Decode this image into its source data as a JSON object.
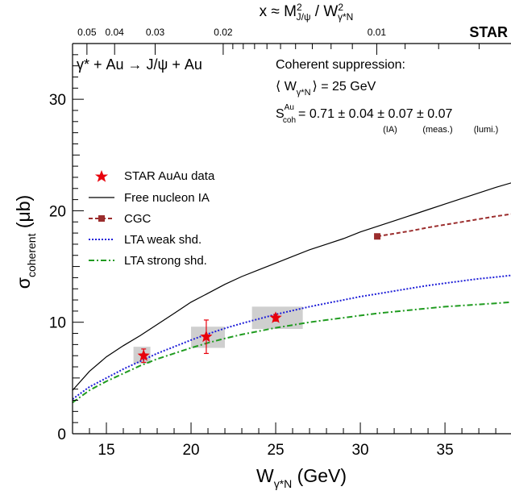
{
  "chart_data": {
    "type": "line",
    "experiment": "STAR",
    "process": "γ* + Au → J/ψ + Au",
    "top_axis_label": "x ≈ M²_J/ψ / W²_γ*N",
    "top_axis_label_parts": {
      "x": "x ≈ M",
      "sup": "2",
      "sub1": "J/ψ",
      "mid": " / W",
      "sub2": "γ*N"
    },
    "top_ticks": [
      {
        "label": "0.05",
        "x": 0.05
      },
      {
        "label": "0.04",
        "x": 0.04
      },
      {
        "label": "0.03",
        "x": 0.03
      },
      {
        "label": "0.02",
        "x": 0.02
      },
      {
        "label": "0.01",
        "x": 0.01
      }
    ],
    "xlabel": "W_γ*N (GeV)",
    "xlabel_parts": {
      "main": "W",
      "sub": "γ*N",
      "unit": " (GeV)"
    },
    "ylabel": "σ_coherent (μb)",
    "ylabel_parts": {
      "main": "σ",
      "sub": "coherent",
      "unit": " (μb)"
    },
    "xlim": [
      13.0,
      38.9
    ],
    "ylim": [
      0,
      35
    ],
    "xticks": [
      15,
      20,
      25,
      30,
      35
    ],
    "yticks": [
      0,
      10,
      20,
      30
    ],
    "annotations": {
      "title": "Coherent suppression:",
      "mean_w": "⟨ W_γ*N ⟩ = 25 GeV",
      "mean_w_parts": {
        "pre": "⟨ W",
        "sub": "γ*N",
        "post": "⟩ = 25 GeV"
      },
      "s_coh": "S_coh^Au = 0.71 ± 0.04 ± 0.07 ± 0.07",
      "s_coh_parts": {
        "main": "S",
        "sup": "Au",
        "sub": "coh",
        "rest": "= 0.71 ± 0.04 ± 0.07 ± 0.07"
      },
      "uncert_labels": [
        "(IA)",
        "(meas.)",
        "(lumi.)"
      ]
    },
    "legend_position": "left",
    "legend": [
      {
        "label": "STAR AuAu data",
        "symbol": "star",
        "color": "#e8000b"
      },
      {
        "label": "Free nucleon IA",
        "symbol": "line",
        "color": "#000000"
      },
      {
        "label": "CGC",
        "symbol": "dashed-square",
        "color": "#9b2d2d"
      },
      {
        "label": "LTA weak shd.",
        "symbol": "dotted",
        "color": "#1f1fd8"
      },
      {
        "label": "LTA strong shd.",
        "symbol": "dashdot",
        "color": "#1f9b1f"
      }
    ],
    "series": [
      {
        "name": "STAR AuAu data",
        "kind": "points",
        "color": "#e8000b",
        "points": [
          {
            "x": 17.2,
            "y": 7.0,
            "yerr_stat": 0.6,
            "sys_x": [
              16.6,
              17.6
            ],
            "sys_y": [
              6.3,
              7.8
            ]
          },
          {
            "x": 20.9,
            "y": 8.7,
            "yerr_stat": 1.5,
            "sys_x": [
              20.0,
              22.0
            ],
            "sys_y": [
              7.7,
              9.6
            ]
          },
          {
            "x": 25.0,
            "y": 10.4,
            "yerr_stat": 0.3,
            "sys_x": [
              23.6,
              26.6
            ],
            "sys_y": [
              9.4,
              11.4
            ]
          }
        ]
      },
      {
        "name": "Free nucleon IA",
        "kind": "curve",
        "color": "#000000",
        "dash": "",
        "x": [
          13.0,
          14.0,
          15.0,
          16.0,
          17.0,
          18.0,
          19.0,
          20.0,
          21.0,
          22.0,
          23.0,
          24.0,
          25.0,
          26.0,
          27.0,
          28.0,
          29.0,
          30.0,
          31.0,
          32.0,
          33.0,
          34.0,
          35.0,
          36.0,
          37.0,
          38.0,
          38.9
        ],
        "y": [
          3.9,
          5.6,
          6.9,
          7.9,
          8.8,
          9.8,
          10.8,
          11.8,
          12.6,
          13.4,
          14.1,
          14.7,
          15.3,
          15.9,
          16.5,
          17.0,
          17.5,
          18.1,
          18.6,
          19.1,
          19.6,
          20.1,
          20.6,
          21.1,
          21.6,
          22.1,
          22.5
        ]
      },
      {
        "name": "CGC",
        "kind": "curve",
        "color": "#9b2d2d",
        "dash": "5,3",
        "marker": "square",
        "x": [
          31.0,
          32.0,
          33.0,
          34.0,
          35.0,
          36.0,
          37.0,
          38.0,
          38.9
        ],
        "y": [
          17.7,
          17.95,
          18.2,
          18.5,
          18.75,
          19.0,
          19.25,
          19.5,
          19.7
        ]
      },
      {
        "name": "LTA weak shd.",
        "kind": "curve",
        "color": "#1f1fd8",
        "dash": "2,2",
        "x": [
          13.0,
          14.0,
          15.0,
          16.0,
          17.0,
          18.0,
          19.0,
          20.0,
          21.0,
          22.0,
          23.0,
          24.0,
          25.0,
          26.0,
          27.0,
          28.0,
          29.0,
          30.0,
          31.0,
          32.0,
          33.0,
          34.0,
          35.0,
          36.0,
          37.0,
          38.0,
          38.9
        ],
        "y": [
          3.1,
          4.2,
          5.0,
          5.8,
          6.5,
          7.2,
          7.8,
          8.4,
          8.95,
          9.45,
          9.9,
          10.3,
          10.7,
          11.05,
          11.4,
          11.7,
          12.0,
          12.3,
          12.55,
          12.8,
          13.05,
          13.3,
          13.5,
          13.7,
          13.9,
          14.05,
          14.2
        ]
      },
      {
        "name": "LTA strong shd.",
        "kind": "curve",
        "color": "#1f9b1f",
        "dash": "7,3,2,3",
        "x": [
          13.0,
          14.0,
          15.0,
          16.0,
          17.0,
          18.0,
          19.0,
          20.0,
          21.0,
          22.0,
          23.0,
          24.0,
          25.0,
          26.0,
          27.0,
          28.0,
          29.0,
          30.0,
          31.0,
          32.0,
          33.0,
          34.0,
          35.0,
          36.0,
          37.0,
          38.0,
          38.9
        ],
        "y": [
          2.8,
          3.9,
          4.7,
          5.4,
          6.1,
          6.7,
          7.2,
          7.7,
          8.15,
          8.55,
          8.9,
          9.2,
          9.5,
          9.75,
          10.0,
          10.2,
          10.4,
          10.6,
          10.8,
          10.95,
          11.1,
          11.25,
          11.4,
          11.5,
          11.6,
          11.7,
          11.8
        ]
      }
    ]
  }
}
